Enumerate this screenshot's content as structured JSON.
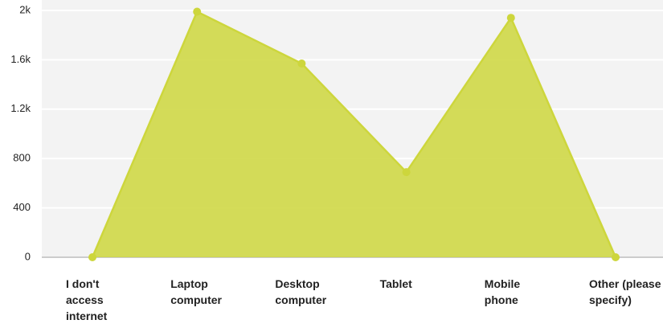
{
  "chart_data": {
    "type": "area",
    "categories": [
      "I don't access internet",
      "Laptop computer",
      "Desktop computer",
      "Tablet",
      "Mobile phone",
      "Other (please specify)"
    ],
    "values": [
      0,
      1990,
      1570,
      690,
      1940,
      0
    ],
    "color": "#cdd63c",
    "ylim": [
      0,
      2000
    ],
    "yticks": [
      0,
      400,
      800,
      {
        "value": 1200,
        "label": "1.2k"
      },
      {
        "value": 1600,
        "label": "1.6k"
      },
      {
        "value": 2000,
        "label": "2k"
      }
    ],
    "grid": true
  }
}
